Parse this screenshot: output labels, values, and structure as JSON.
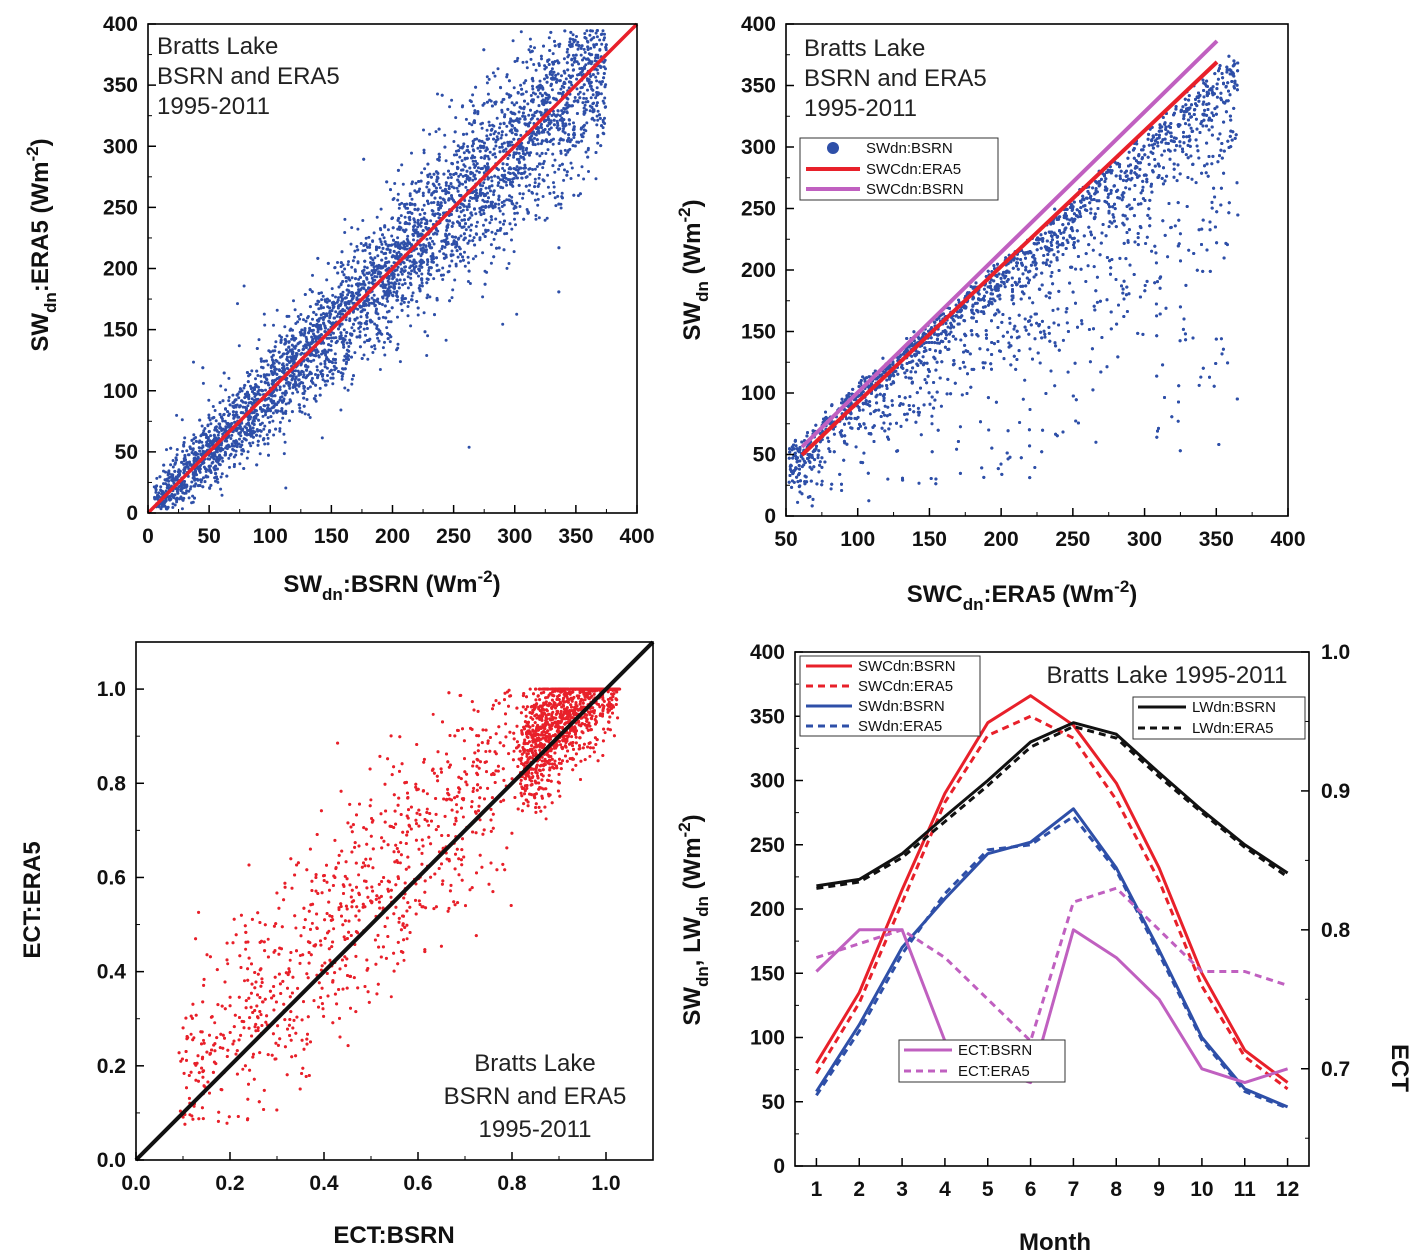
{
  "chart_data": [
    {
      "panel": "top-left",
      "type": "scatter",
      "annotation": [
        "Bratts Lake",
        "BSRN and ERA5",
        "1995-2011"
      ],
      "xlabel": {
        "main": "SW",
        "sub": "dn",
        "mid": ":BSRN (Wm",
        "sup": "-2",
        "end": ")"
      },
      "ylabel": {
        "main": "SW",
        "sub": "dn",
        "mid": ":ERA5 (Wm",
        "sup": "-2",
        "end": ")"
      },
      "xlim": [
        0,
        400
      ],
      "ylim": [
        0,
        400
      ],
      "xticks": [
        "0",
        "50",
        "100",
        "150",
        "200",
        "250",
        "300",
        "350",
        "400"
      ],
      "yticks": [
        "0",
        "50",
        "100",
        "150",
        "200",
        "250",
        "300",
        "350",
        "400"
      ],
      "x_range_data": [
        5,
        375
      ],
      "scatter_color": "#2e4fa8",
      "fit_line": {
        "color": "#e8202a",
        "x": [
          0,
          400
        ],
        "y": [
          0,
          400
        ]
      }
    },
    {
      "panel": "top-right",
      "type": "scatter",
      "annotation": [
        "Bratts Lake",
        "BSRN and ERA5",
        "1995-2011"
      ],
      "xlabel": {
        "main": "SWC",
        "sub": "dn",
        "mid": ":ERA5 (Wm",
        "sup": "-2",
        "end": ")"
      },
      "ylabel": {
        "main": "SW",
        "sub": "dn",
        "mid": " (Wm",
        "sup": "-2",
        "end": ")"
      },
      "xlim": [
        50,
        400
      ],
      "ylim": [
        0,
        400
      ],
      "xticks": [
        "50",
        "100",
        "150",
        "200",
        "250",
        "300",
        "350",
        "400"
      ],
      "yticks": [
        "0",
        "50",
        "100",
        "150",
        "200",
        "250",
        "300",
        "350",
        "400"
      ],
      "legend": [
        "SWdn:BSRN",
        "SWCdn:ERA5",
        "SWCdn:BSRN"
      ],
      "scatter_color": "#2e4fa8",
      "lines": [
        {
          "name": "SWCdn:ERA5",
          "color": "#e8202a",
          "x": [
            50,
            368
          ],
          "y": [
            50,
            368
          ]
        },
        {
          "name": "SWCdn:BSRN",
          "color": "#c060c0",
          "x": [
            50,
            368
          ],
          "y": [
            57,
            385
          ]
        }
      ]
    },
    {
      "panel": "bottom-left",
      "type": "scatter",
      "annotation": [
        "Bratts Lake",
        "BSRN and ERA5",
        "1995-2011"
      ],
      "xlabel": "ECT:BSRN",
      "ylabel": "ECT:ERA5",
      "xlim": [
        0.0,
        1.1
      ],
      "ylim": [
        0.0,
        1.1
      ],
      "xticks": [
        "0.0",
        "0.2",
        "0.4",
        "0.6",
        "0.8",
        "1.0"
      ],
      "yticks": [
        "0.0",
        "0.2",
        "0.4",
        "0.6",
        "0.8",
        "1.0"
      ],
      "scatter_color": "#e8202a",
      "one_to_one_line": {
        "color": "#111111",
        "x": [
          0,
          1.1
        ],
        "y": [
          0,
          1.1
        ]
      }
    },
    {
      "panel": "bottom-right",
      "type": "line",
      "title": "Bratts Lake 1995-2011",
      "xlabel": "Month",
      "ylabel": {
        "p1": "SW",
        "s1": "dn",
        "p2": ", LW",
        "s2": "dn",
        "p3": " (Wm",
        "sup": "-2",
        "end": ")"
      },
      "ylabel_right": "ECT",
      "x": [
        1,
        2,
        3,
        4,
        5,
        6,
        7,
        8,
        9,
        10,
        11,
        12
      ],
      "xticks": [
        "1",
        "2",
        "3",
        "4",
        "5",
        "6",
        "7",
        "8",
        "9",
        "10",
        "11",
        "12"
      ],
      "ylim": [
        0,
        400
      ],
      "yticks": [
        "0",
        "50",
        "100",
        "150",
        "200",
        "250",
        "300",
        "350",
        "400"
      ],
      "ylim_right": [
        0.63,
        1.0
      ],
      "yticks_right": [
        "0.7",
        "0.8",
        "0.9",
        "1.0"
      ],
      "series": [
        {
          "name": "SWCdn:BSRN",
          "axis": "left",
          "color": "#e8202a",
          "dash": "solid",
          "values": [
            80,
            135,
            215,
            290,
            345,
            366,
            343,
            298,
            232,
            150,
            90,
            65
          ]
        },
        {
          "name": "SWCdn:ERA5",
          "axis": "left",
          "color": "#e8202a",
          "dash": "dashed",
          "values": [
            72,
            127,
            205,
            283,
            335,
            350,
            333,
            285,
            222,
            140,
            85,
            60
          ]
        },
        {
          "name": "SWdn:BSRN",
          "axis": "left",
          "color": "#2e4fa8",
          "dash": "solid",
          "values": [
            58,
            110,
            170,
            208,
            243,
            252,
            278,
            232,
            168,
            100,
            60,
            46
          ]
        },
        {
          "name": "SWdn:ERA5",
          "axis": "left",
          "color": "#2e4fa8",
          "dash": "dashed",
          "values": [
            55,
            105,
            165,
            212,
            246,
            250,
            272,
            230,
            165,
            98,
            58,
            45
          ]
        },
        {
          "name": "LWdn:BSRN",
          "axis": "left",
          "color": "#111111",
          "dash": "solid",
          "values": [
            218,
            223,
            243,
            272,
            300,
            330,
            345,
            336,
            306,
            277,
            250,
            228
          ]
        },
        {
          "name": "LWdn:ERA5",
          "axis": "left",
          "color": "#111111",
          "dash": "dashed",
          "values": [
            216,
            221,
            240,
            268,
            296,
            326,
            342,
            333,
            303,
            275,
            248,
            225
          ]
        },
        {
          "name": "ECT:BSRN",
          "axis": "right",
          "color": "#c060c0",
          "dash": "solid",
          "values": [
            0.77,
            0.8,
            0.8,
            0.72,
            0.7,
            0.69,
            0.8,
            0.78,
            0.75,
            0.7,
            0.69,
            0.7
          ]
        },
        {
          "name": "ECT:ERA5",
          "axis": "right",
          "color": "#c060c0",
          "dash": "dashed",
          "values": [
            0.78,
            0.79,
            0.8,
            0.78,
            0.75,
            0.72,
            0.82,
            0.83,
            0.8,
            0.77,
            0.77,
            0.76
          ]
        }
      ]
    }
  ]
}
